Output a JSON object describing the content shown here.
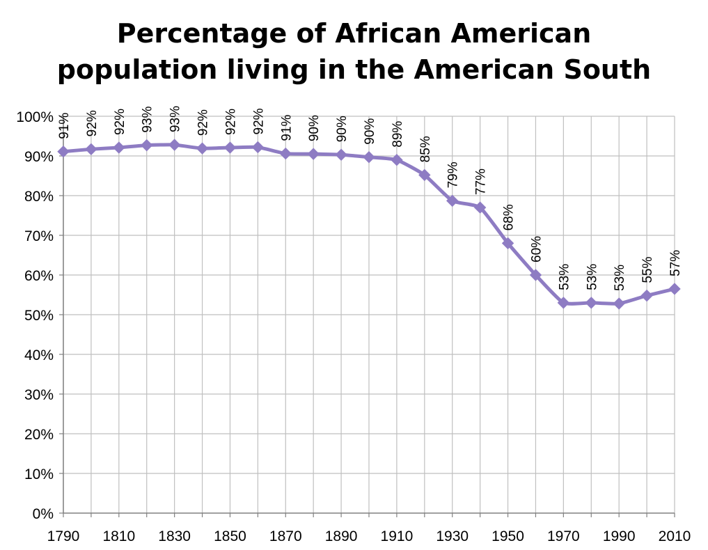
{
  "chart_data": {
    "type": "line",
    "title_lines": [
      "Percentage of African American",
      "population living in the American South"
    ],
    "x": [
      1790,
      1800,
      1810,
      1820,
      1830,
      1840,
      1850,
      1860,
      1870,
      1880,
      1890,
      1900,
      1910,
      1920,
      1930,
      1940,
      1950,
      1960,
      1970,
      1980,
      1990,
      2000,
      2010
    ],
    "values": [
      91.1,
      91.7,
      92.1,
      92.7,
      92.8,
      91.9,
      92.1,
      92.2,
      90.6,
      90.5,
      90.3,
      89.7,
      89.0,
      85.2,
      78.7,
      77.0,
      68.0,
      60.0,
      53.0,
      53.0,
      52.8,
      54.8,
      56.5
    ],
    "data_labels": [
      "91%",
      "92%",
      "92%",
      "93%",
      "93%",
      "92%",
      "92%",
      "92%",
      "91%",
      "90%",
      "90%",
      "90%",
      "89%",
      "85%",
      "79%",
      "77%",
      "68%",
      "60%",
      "53%",
      "53%",
      "53%",
      "55%",
      "57%"
    ],
    "x_tick_labels": [
      "1790",
      "1810",
      "1830",
      "1850",
      "1870",
      "1890",
      "1910",
      "1930",
      "1950",
      "1970",
      "1990",
      "2010"
    ],
    "y_tick_labels": [
      "0%",
      "10%",
      "20%",
      "30%",
      "40%",
      "50%",
      "60%",
      "70%",
      "80%",
      "90%",
      "100%"
    ],
    "ylim": [
      0,
      100
    ],
    "xlim": [
      1790,
      2010
    ],
    "grid": true,
    "line_color": "#8e7cc3",
    "grid_color": "#bfbfbf",
    "xlabel": "",
    "ylabel": ""
  }
}
